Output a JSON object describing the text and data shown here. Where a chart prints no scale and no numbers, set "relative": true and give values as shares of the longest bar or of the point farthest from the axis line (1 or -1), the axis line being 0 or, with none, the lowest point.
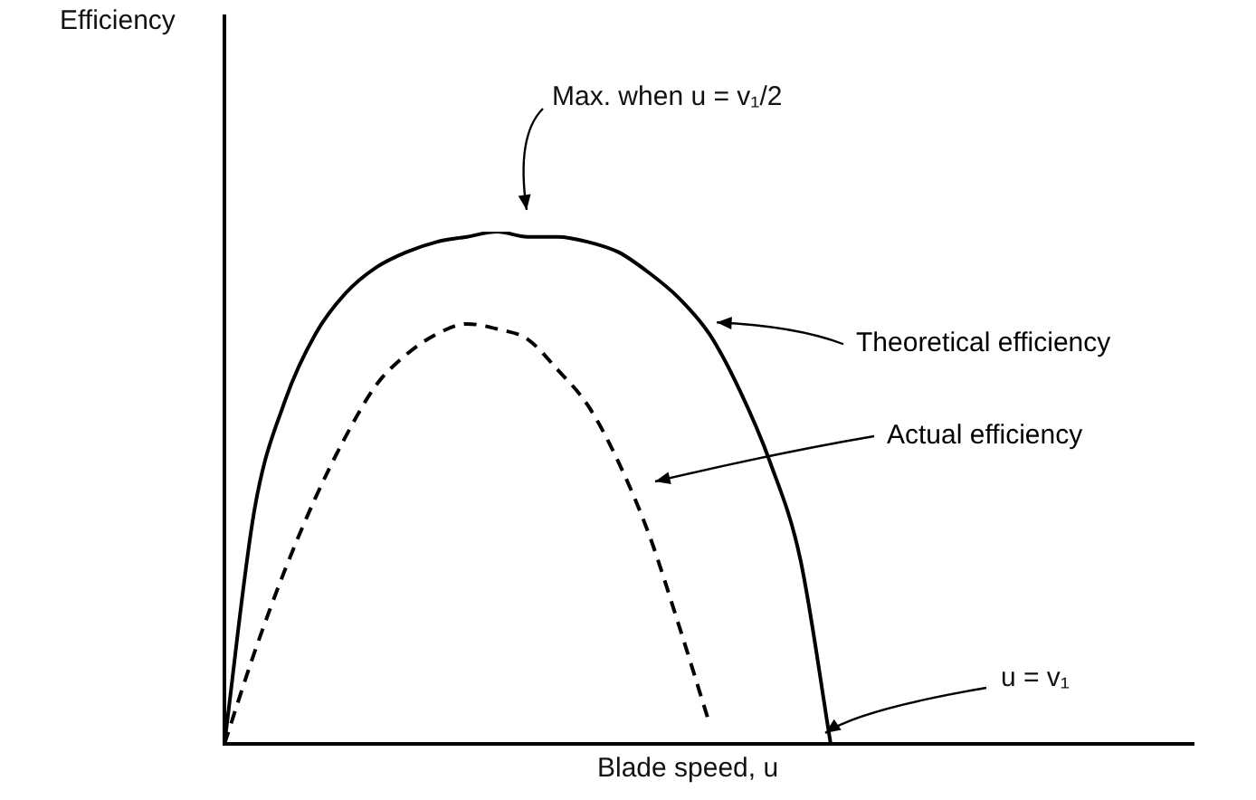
{
  "chart_data": {
    "type": "line",
    "relative": true,
    "xlabel": "Blade speed, u",
    "grid": false,
    "legend": "right",
    "marker": "none",
    "categories": [
      null,
      null,
      null,
      null,
      null,
      null,
      null,
      null,
      null,
      null,
      null,
      null,
      null,
      null,
      null,
      null,
      null,
      null,
      null,
      null,
      null,
      null,
      null,
      null,
      null,
      null,
      null,
      null,
      null,
      null,
      null,
      null,
      null
    ],
    "series": [
      {
        "name": "Theoretical efficiency",
        "color": "#000000",
        "line_style": "solid",
        "values": [
          0,
          0.46,
          0.67,
          0.8,
          0.88,
          0.93,
          0.96,
          0.98,
          0.99,
          1,
          0.99,
          0.99,
          0.98,
          0.96,
          0.92,
          0.87,
          0.8,
          0.69,
          0.55,
          0.36,
          0,
          null,
          null,
          null,
          null,
          null,
          null,
          null,
          null,
          null,
          null,
          null,
          null
        ]
      },
      {
        "name": "Actual efficiency",
        "color": "#000000",
        "line_style": "dashed",
        "values": [
          0,
          0.18,
          0.34,
          0.48,
          0.6,
          0.7,
          0.76,
          0.8,
          0.82,
          0.81,
          0.79,
          0.73,
          0.66,
          0.55,
          0.41,
          0.23,
          0.04,
          null,
          null,
          null,
          null,
          null,
          null,
          null,
          null,
          null,
          null,
          null,
          null,
          null,
          null,
          null,
          null
        ]
      }
    ],
    "annotations": [
      "Max. when u = v₁/2",
      "u = v₁",
      "Efficiency"
    ]
  }
}
